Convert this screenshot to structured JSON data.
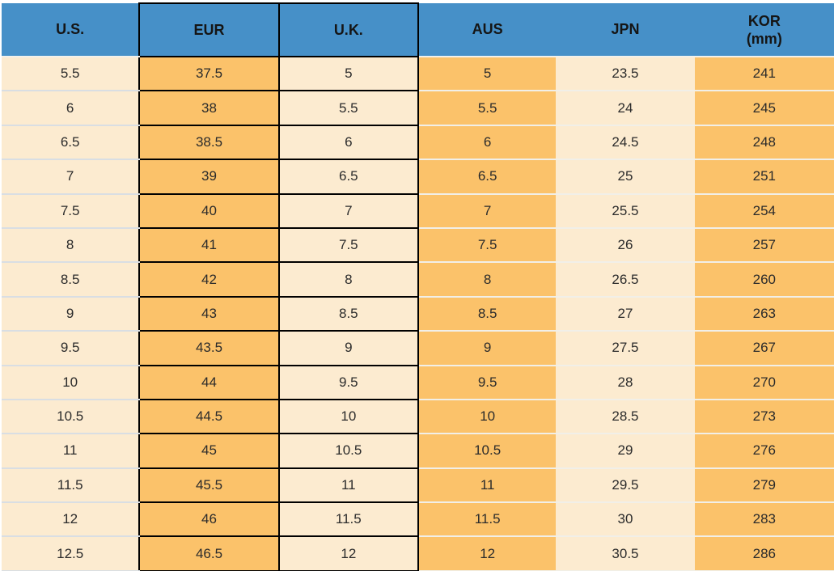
{
  "header": {
    "us": "U.S.",
    "eur": "EUR",
    "uk": "U.K.",
    "aus": "AUS",
    "jpn": "JPN",
    "kor_line1": "KOR",
    "kor_line2": "(mm)"
  },
  "chart_data": {
    "type": "table",
    "columns": [
      "U.S.",
      "EUR",
      "U.K.",
      "AUS",
      "JPN",
      "KOR (mm)"
    ],
    "rows": [
      [
        "5.5",
        "37.5",
        "5",
        "5",
        "23.5",
        "241"
      ],
      [
        "6",
        "38",
        "5.5",
        "5.5",
        "24",
        "245"
      ],
      [
        "6.5",
        "38.5",
        "6",
        "6",
        "24.5",
        "248"
      ],
      [
        "7",
        "39",
        "6.5",
        "6.5",
        "25",
        "251"
      ],
      [
        "7.5",
        "40",
        "7",
        "7",
        "25.5",
        "254"
      ],
      [
        "8",
        "41",
        "7.5",
        "7.5",
        "26",
        "257"
      ],
      [
        "8.5",
        "42",
        "8",
        "8",
        "26.5",
        "260"
      ],
      [
        "9",
        "43",
        "8.5",
        "8.5",
        "27",
        "263"
      ],
      [
        "9.5",
        "43.5",
        "9",
        "9",
        "27.5",
        "267"
      ],
      [
        "10",
        "44",
        "9.5",
        "9.5",
        "28",
        "270"
      ],
      [
        "10.5",
        "44.5",
        "10",
        "10",
        "28.5",
        "273"
      ],
      [
        "11",
        "45",
        "10.5",
        "10.5",
        "29",
        "276"
      ],
      [
        "11.5",
        "45.5",
        "11",
        "11",
        "29.5",
        "279"
      ],
      [
        "12",
        "46",
        "11.5",
        "11.5",
        "30",
        "283"
      ],
      [
        "12.5",
        "46.5",
        "12",
        "12",
        "30.5",
        "286"
      ]
    ]
  },
  "colors": {
    "header_bg": "#4690C8",
    "orange_cell": "#FBC26A",
    "cream_cell": "#FCEBD0",
    "box_border": "#000000",
    "cream_separator": "#D9DEE3",
    "orange_separator": "#F1EFE8",
    "text": "#2B2B2B"
  }
}
